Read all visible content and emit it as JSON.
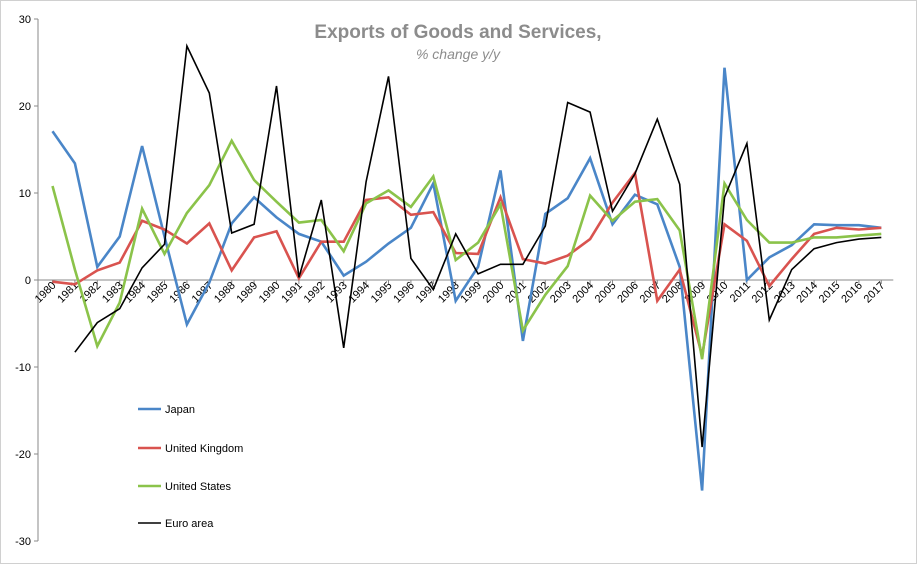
{
  "chart_data": {
    "type": "line",
    "title": "Exports of Goods and Services,",
    "subtitle": "% change y/y",
    "xlabel": "",
    "ylabel": "",
    "ylim": [
      -30,
      30
    ],
    "yticks": [
      "30",
      "20",
      "10",
      "0",
      "-10",
      "-20",
      "-30"
    ],
    "grid": false,
    "legend_position": "bottom-left",
    "x": [
      "1980",
      "1981",
      "1982",
      "1983",
      "1984",
      "1985",
      "1986",
      "1987",
      "1988",
      "1989",
      "1990",
      "1991",
      "1992",
      "1993",
      "1994",
      "1995",
      "1996",
      "1997",
      "1998",
      "1999",
      "2000",
      "2001",
      "2002",
      "2003",
      "2004",
      "2005",
      "2006",
      "2007",
      "2008",
      "2009",
      "2010",
      "2011",
      "2012",
      "2013",
      "2014",
      "2015",
      "2016",
      "2017"
    ],
    "series": [
      {
        "name": "Japan",
        "color": "#4a86c8",
        "values": [
          17.1,
          13.4,
          1.5,
          5.0,
          15.4,
          5.0,
          -5.1,
          -0.3,
          6.5,
          9.5,
          7.2,
          5.3,
          4.4,
          0.5,
          2.1,
          4.2,
          6.0,
          11.1,
          -2.4,
          1.5,
          12.6,
          -7.0,
          7.6,
          9.4,
          14.0,
          6.4,
          9.8,
          8.7,
          1.5,
          -24.2,
          24.4,
          0.0,
          2.6,
          4.0,
          6.4,
          6.3,
          6.3,
          6.0
        ]
      },
      {
        "name": "United Kingdom",
        "color": "#d9534f",
        "values": [
          -0.2,
          -0.5,
          1.1,
          2.0,
          6.8,
          5.8,
          4.2,
          6.5,
          1.1,
          4.9,
          5.6,
          0.2,
          4.4,
          4.4,
          9.2,
          9.5,
          7.5,
          7.8,
          3.1,
          3.0,
          9.5,
          2.4,
          1.9,
          2.8,
          4.7,
          8.9,
          12.3,
          -2.4,
          1.2,
          -8.7,
          6.4,
          4.5,
          -0.7,
          2.4,
          5.3,
          6.0,
          5.8,
          6.0
        ]
      },
      {
        "name": "United States",
        "color": "#8bc34a",
        "values": [
          10.8,
          1.2,
          -7.6,
          -2.6,
          8.2,
          3.0,
          7.7,
          10.9,
          16.0,
          11.5,
          9.0,
          6.6,
          6.9,
          3.3,
          8.8,
          10.3,
          8.4,
          11.9,
          2.3,
          4.3,
          8.7,
          -5.8,
          -1.7,
          1.6,
          9.7,
          6.8,
          9.0,
          9.3,
          5.7,
          -9.1,
          11.1,
          6.9,
          4.3,
          4.3,
          4.9,
          4.9,
          5.1,
          5.3
        ]
      },
      {
        "name": "Euro area",
        "color": "#000000",
        "start_index": 1,
        "values": [
          null,
          -8.3,
          -4.9,
          -3.3,
          1.4,
          4.1,
          26.9,
          21.5,
          5.4,
          6.4,
          22.3,
          0.3,
          9.2,
          -7.8,
          11.3,
          23.4,
          2.5,
          -1.1,
          5.3,
          0.7,
          1.8,
          1.8,
          6.2,
          20.4,
          19.3,
          7.9,
          12.2,
          18.5,
          11.0,
          -19.2,
          9.5,
          15.7,
          -4.6,
          1.2,
          3.6,
          4.3,
          4.7,
          4.9
        ]
      }
    ]
  }
}
